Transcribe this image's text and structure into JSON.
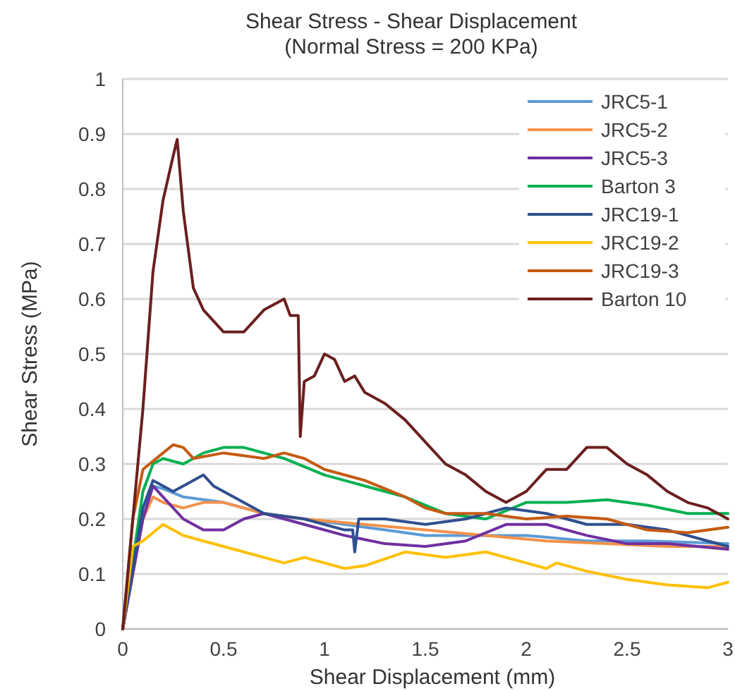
{
  "chart_data": {
    "type": "line",
    "title": "Shear Stress - Shear Displacement",
    "subtitle": "(Normal Stress = 200 KPa)",
    "xlabel": "Shear Displacement  (mm)",
    "ylabel": "Shear Stress (MPa)",
    "xlim": [
      0,
      3
    ],
    "xticks": [
      0,
      0.5,
      1,
      1.5,
      2,
      2.5,
      3
    ],
    "ylim": [
      0,
      1
    ],
    "yticks": [
      0,
      0.1,
      0.2,
      0.3,
      0.4,
      0.5,
      0.6,
      0.7,
      0.8,
      0.9,
      1
    ],
    "grid": "y",
    "legend": "top right",
    "line_style": "solid",
    "marker": "none",
    "series": [
      {
        "name": "JRC5-1",
        "color": "#5b9bd5",
        "x": [
          0,
          0.1,
          0.15,
          0.2,
          0.3,
          0.5,
          0.7,
          0.9,
          1.1,
          1.3,
          1.5,
          1.7,
          2,
          2.3,
          2.6,
          3
        ],
        "values": [
          0,
          0.22,
          0.26,
          0.255,
          0.24,
          0.23,
          0.21,
          0.2,
          0.19,
          0.18,
          0.17,
          0.17,
          0.17,
          0.16,
          0.16,
          0.155
        ]
      },
      {
        "name": "JRC5-2",
        "color": "#f4914a",
        "x": [
          0,
          0.1,
          0.15,
          0.2,
          0.3,
          0.4,
          0.5,
          0.7,
          0.9,
          1.2,
          1.5,
          1.8,
          2.1,
          2.4,
          2.7,
          3
        ],
        "values": [
          0,
          0.2,
          0.24,
          0.23,
          0.22,
          0.23,
          0.23,
          0.21,
          0.2,
          0.19,
          0.18,
          0.17,
          0.16,
          0.155,
          0.15,
          0.15
        ]
      },
      {
        "name": "JRC5-3",
        "color": "#7030a0",
        "x": [
          0,
          0.1,
          0.15,
          0.2,
          0.3,
          0.4,
          0.5,
          0.6,
          0.7,
          0.9,
          1.1,
          1.3,
          1.5,
          1.7,
          1.9,
          2.1,
          2.3,
          2.5,
          2.7,
          3
        ],
        "values": [
          0,
          0.2,
          0.26,
          0.24,
          0.2,
          0.18,
          0.18,
          0.2,
          0.21,
          0.19,
          0.17,
          0.155,
          0.15,
          0.16,
          0.19,
          0.19,
          0.17,
          0.155,
          0.155,
          0.145
        ]
      },
      {
        "name": "Barton 3",
        "color": "#00b050",
        "x": [
          0,
          0.1,
          0.15,
          0.2,
          0.3,
          0.4,
          0.5,
          0.6,
          0.8,
          1,
          1.2,
          1.4,
          1.6,
          1.8,
          2,
          2.2,
          2.4,
          2.6,
          2.8,
          3
        ],
        "values": [
          0,
          0.25,
          0.3,
          0.31,
          0.3,
          0.32,
          0.33,
          0.33,
          0.31,
          0.28,
          0.26,
          0.24,
          0.21,
          0.2,
          0.23,
          0.23,
          0.235,
          0.225,
          0.21,
          0.21
        ]
      },
      {
        "name": "JRC19-1",
        "color": "#2f4f8f",
        "x": [
          0,
          0.1,
          0.15,
          0.2,
          0.25,
          0.3,
          0.4,
          0.45,
          0.5,
          0.7,
          0.9,
          1.1,
          1.14,
          1.15,
          1.17,
          1.3,
          1.5,
          1.7,
          1.9,
          2.1,
          2.3,
          2.5,
          2.7,
          2.9,
          3
        ],
        "values": [
          0,
          0.22,
          0.27,
          0.26,
          0.25,
          0.26,
          0.28,
          0.26,
          0.25,
          0.21,
          0.2,
          0.18,
          0.18,
          0.14,
          0.2,
          0.2,
          0.19,
          0.2,
          0.22,
          0.21,
          0.19,
          0.19,
          0.18,
          0.16,
          0.15
        ]
      },
      {
        "name": "JRC19-2",
        "color": "#ffc000",
        "x": [
          0,
          0.05,
          0.1,
          0.2,
          0.3,
          0.4,
          0.6,
          0.8,
          0.9,
          1,
          1.1,
          1.2,
          1.4,
          1.6,
          1.8,
          2,
          2.1,
          2.15,
          2.3,
          2.5,
          2.7,
          2.9,
          3
        ],
        "values": [
          0,
          0.15,
          0.16,
          0.19,
          0.17,
          0.16,
          0.14,
          0.12,
          0.13,
          0.12,
          0.11,
          0.115,
          0.14,
          0.13,
          0.14,
          0.12,
          0.11,
          0.12,
          0.105,
          0.09,
          0.08,
          0.075,
          0.085
        ]
      },
      {
        "name": "JRC19-3",
        "color": "#c55a11",
        "x": [
          0,
          0.05,
          0.1,
          0.2,
          0.25,
          0.3,
          0.35,
          0.5,
          0.6,
          0.7,
          0.8,
          0.9,
          1,
          1.2,
          1.4,
          1.5,
          1.6,
          1.8,
          2,
          2.2,
          2.4,
          2.6,
          2.8,
          3
        ],
        "values": [
          0,
          0.2,
          0.29,
          0.32,
          0.335,
          0.33,
          0.31,
          0.32,
          0.315,
          0.31,
          0.32,
          0.31,
          0.29,
          0.27,
          0.24,
          0.22,
          0.21,
          0.21,
          0.2,
          0.205,
          0.2,
          0.18,
          0.175,
          0.185
        ]
      },
      {
        "name": "Barton 10",
        "color": "#6b1f1f",
        "x": [
          0,
          0.1,
          0.15,
          0.2,
          0.25,
          0.27,
          0.3,
          0.35,
          0.4,
          0.5,
          0.6,
          0.7,
          0.8,
          0.83,
          0.87,
          0.88,
          0.9,
          0.95,
          1,
          1.05,
          1.1,
          1.15,
          1.2,
          1.3,
          1.4,
          1.5,
          1.6,
          1.7,
          1.8,
          1.9,
          2,
          2.1,
          2.2,
          2.3,
          2.4,
          2.5,
          2.6,
          2.7,
          2.8,
          2.9,
          3
        ],
        "values": [
          0,
          0.4,
          0.65,
          0.78,
          0.86,
          0.89,
          0.76,
          0.62,
          0.58,
          0.54,
          0.54,
          0.58,
          0.6,
          0.57,
          0.57,
          0.35,
          0.45,
          0.46,
          0.5,
          0.49,
          0.45,
          0.46,
          0.43,
          0.41,
          0.38,
          0.34,
          0.3,
          0.28,
          0.25,
          0.23,
          0.25,
          0.29,
          0.29,
          0.33,
          0.33,
          0.3,
          0.28,
          0.25,
          0.23,
          0.22,
          0.2
        ]
      }
    ]
  }
}
